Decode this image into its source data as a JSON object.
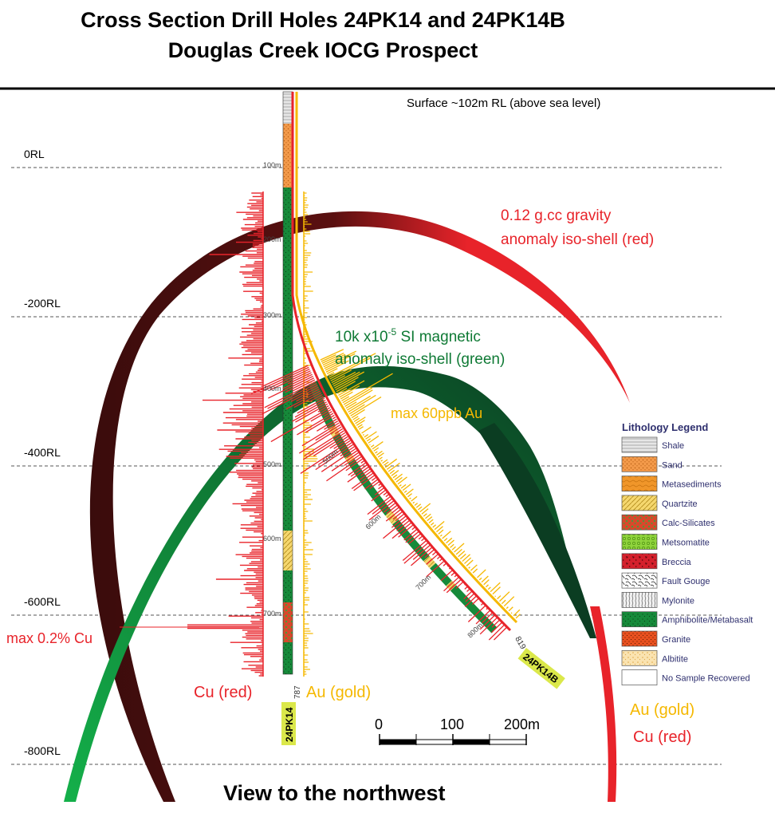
{
  "title_line1": "Cross Section Drill Holes 24PK14 and 24PK14B",
  "title_line2": "Douglas Creek IOCG Prospect",
  "surface_label": "Surface ~102m RL (above sea level)",
  "rl_levels": [
    {
      "label": "0RL",
      "rl": 0
    },
    {
      "label": "-200RL",
      "rl": -200
    },
    {
      "label": "-400RL",
      "rl": -400
    },
    {
      "label": "-600RL",
      "rl": -600
    },
    {
      "label": "-800RL",
      "rl": -800
    }
  ],
  "annotations": {
    "gravity_line1": "0.12 g.cc gravity",
    "gravity_line2": "anomaly iso-shell (red)",
    "magnetic_line1": "10k x10",
    "magnetic_sup": "-5",
    "magnetic_line1_end": " SI  magnetic",
    "magnetic_line2": "anomaly iso-shell (green)",
    "max_au": "max 60ppb Au",
    "max_cu": "max 0.2% Cu",
    "cu_label": "Cu (red)",
    "au_label": "Au (gold)",
    "right_au": "Au (gold)",
    "right_cu": "Cu (red)",
    "view": "View to the northwest"
  },
  "holes": {
    "vertical": {
      "name": "24PK14",
      "end_depth": "787"
    },
    "inclined": {
      "name": "24PK14B",
      "end_depth": "819"
    }
  },
  "depth_marks_vertical": [
    "100m",
    "200m",
    "300m",
    "400m",
    "500m",
    "600m",
    "700m"
  ],
  "depth_marks_inclined": [
    "500m",
    "600m",
    "700m",
    "800m"
  ],
  "scale_bar": {
    "labels": [
      "0",
      "100",
      "200m"
    ]
  },
  "legend": {
    "title": "Lithology Legend",
    "items": [
      {
        "label": "Shale",
        "color": "#e6e6e6",
        "pattern": "shale"
      },
      {
        "label": "Sand",
        "color": "#f39a4a",
        "pattern": "sand"
      },
      {
        "label": "Metasediments",
        "color": "#f0962a",
        "pattern": "meta"
      },
      {
        "label": "Quartzite",
        "color": "#f5d76e",
        "pattern": "quartz"
      },
      {
        "label": "Calc-Silicates",
        "color": "#d9482b",
        "pattern": "calc"
      },
      {
        "label": "Metsomatite",
        "color": "#8fd33c",
        "pattern": "metso"
      },
      {
        "label": "Breccia",
        "color": "#d4202c",
        "pattern": "breccia"
      },
      {
        "label": "Fault Gouge",
        "color": "#ffffff",
        "pattern": "gouge"
      },
      {
        "label": "Mylonite",
        "color": "#f2f2f2",
        "pattern": "mylonite"
      },
      {
        "label": "Amphibolite/Metabasalt",
        "color": "#168a3a",
        "pattern": "amph"
      },
      {
        "label": "Granite",
        "color": "#e8501f",
        "pattern": "granite"
      },
      {
        "label": "Albitite",
        "color": "#fae3b0",
        "pattern": "albitite"
      },
      {
        "label": "No Sample Recovered",
        "color": "#ffffff",
        "pattern": "none"
      }
    ]
  },
  "colors": {
    "cu": "#e8232a",
    "au": "#f5b800",
    "gravity_shell": "#e8232a",
    "gravity_shell_dark": "#3a0c0c",
    "magnetic_shell": "#0f7a35",
    "magnetic_shell_dark": "#0b3d22",
    "hole_label_bg": "#dbe84a",
    "legend_text": "#2e2f6e"
  }
}
